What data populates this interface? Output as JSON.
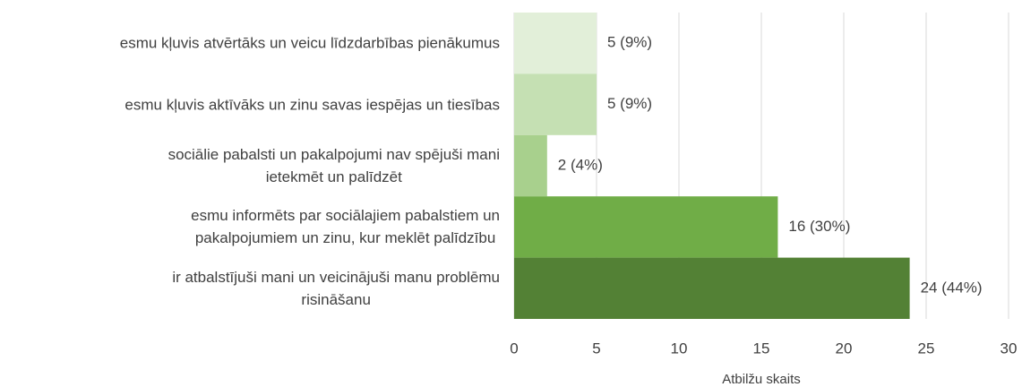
{
  "chart_data": {
    "type": "barh",
    "categories": [
      "esmu kļuvis atvērtāks un veicu līdzdarbības pienākumus",
      "esmu kļuvis aktīvāks un zinu savas iespējas un tiesības",
      "sociālie pabalsti un pakalpojumi nav spējuši mani\nietekmēt un palīdzēt",
      "esmu informēts par sociālajiem pabalstiem un\npakalpojumiem un zinu, kur meklēt palīdzību",
      "ir atbalstījuši mani un veicinājuši manu problēmu\nrisināšanu"
    ],
    "values": [
      5,
      5,
      2,
      16,
      24
    ],
    "value_labels": [
      "5 (9%)",
      "5 (9%)",
      "2 (4%)",
      "16 (30%)",
      "24 (44%)"
    ],
    "colors": [
      "#e2efd9",
      "#c5e0b3",
      "#a8d08d",
      "#70ad47",
      "#538135"
    ],
    "xlabel": "Atbilžu skaits",
    "xlim": [
      0,
      30
    ],
    "xticks": [
      0,
      5,
      10,
      15,
      20,
      25,
      30
    ],
    "grid": true
  }
}
